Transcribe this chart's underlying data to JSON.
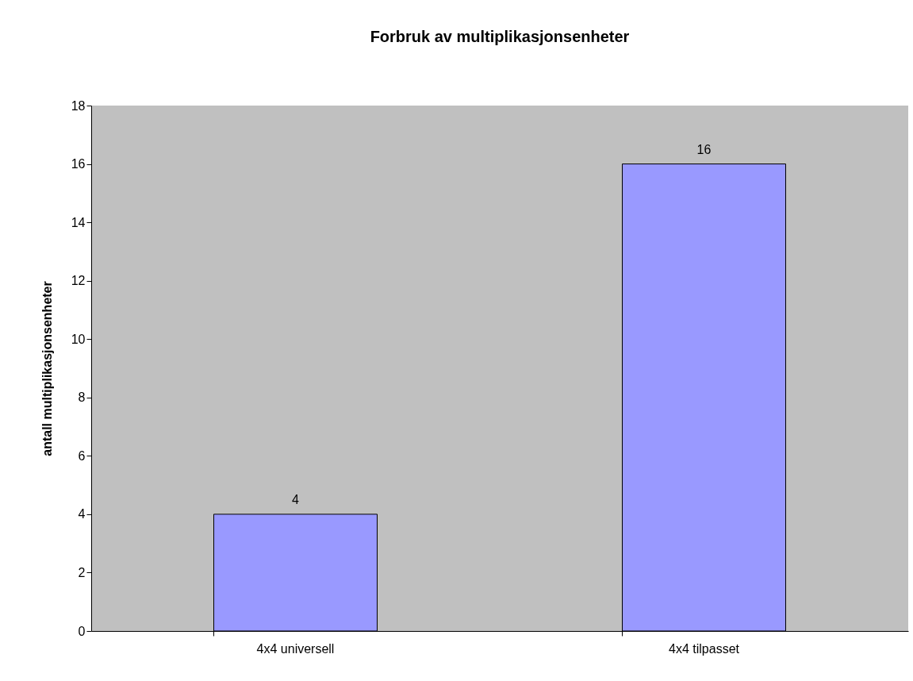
{
  "chart_data": {
    "type": "bar",
    "title": "Forbruk av multiplikasjonsenheter",
    "ylabel": "antall multiplikasjonsenheter",
    "categories": [
      "4x4 universell",
      "4x4 tilpasset"
    ],
    "values": [
      4,
      16
    ],
    "color": "#9999ff",
    "ylim": [
      0,
      18
    ],
    "yticks": [
      0,
      2,
      4,
      6,
      8,
      10,
      12,
      14,
      16,
      18
    ],
    "grid": false,
    "data_labels": true
  }
}
